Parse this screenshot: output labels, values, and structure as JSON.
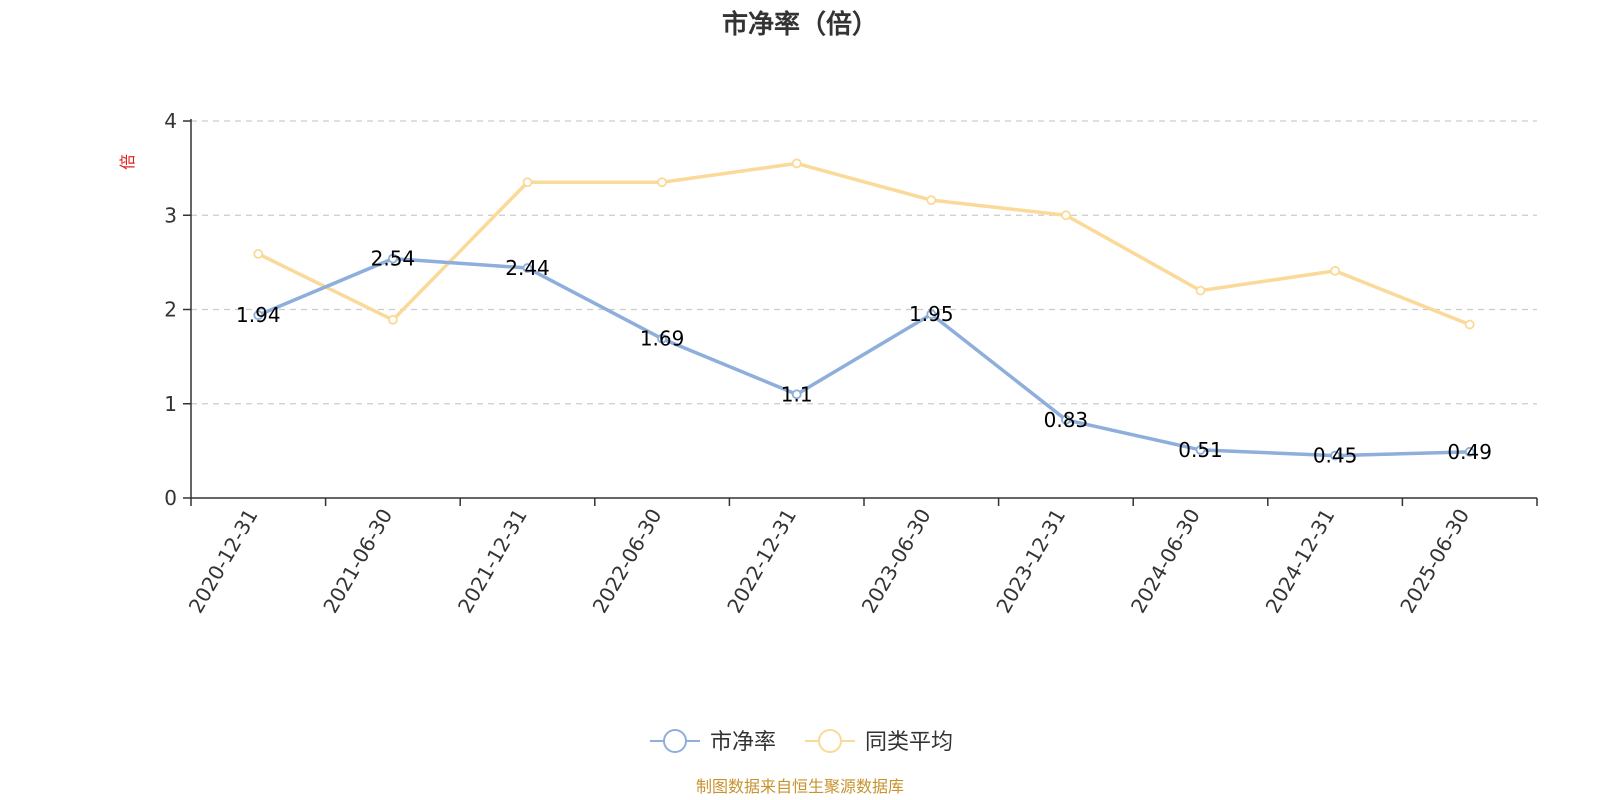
{
  "chart_data": {
    "type": "line",
    "title": "市净率（倍）",
    "ylabel": "倍",
    "xlabel": "",
    "categories": [
      "2020-12-31",
      "2021-06-30",
      "2021-12-31",
      "2022-06-30",
      "2022-12-31",
      "2023-06-30",
      "2023-12-31",
      "2024-06-30",
      "2024-12-31",
      "2025-06-30"
    ],
    "ylim": [
      0,
      4
    ],
    "yticks": [
      "0",
      "1",
      "2",
      "3",
      "4"
    ],
    "grid": true,
    "legend_position": "bottom-center",
    "series": [
      {
        "name": "市净率",
        "color": "#8eaedb",
        "values": [
          1.94,
          2.54,
          2.44,
          1.69,
          1.1,
          1.95,
          0.83,
          0.51,
          0.45,
          0.49
        ],
        "labels": [
          "1.94",
          "2.54",
          "2.44",
          "1.69",
          "1.1",
          "1.95",
          "0.83",
          "0.51",
          "0.45",
          "0.49"
        ]
      },
      {
        "name": "同类平均",
        "color": "#fbd998",
        "values": [
          2.59,
          1.89,
          3.35,
          3.35,
          3.55,
          3.16,
          3.0,
          2.2,
          2.41,
          1.84
        ]
      }
    ],
    "source": "制图数据来自恒生聚源数据库",
    "source_color": "#c8932e",
    "ylabel_color": "#e02020"
  }
}
